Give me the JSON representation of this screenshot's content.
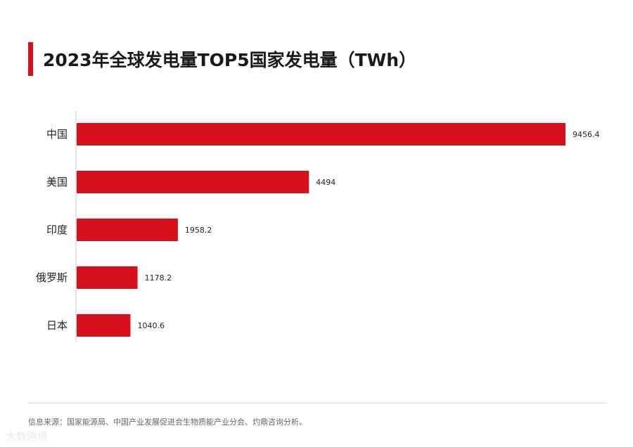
{
  "title": "2023年全球发电量TOP5国家发电量（TWh）",
  "source": "信息来源：国家能源局、中国产业发展促进会生物质能产业分会、灼鼎咨询分析。",
  "watermark": "大数跨境",
  "colors": {
    "bar": "#d7101d",
    "accent": "#d7101d",
    "axis": "#cccccc"
  },
  "chart_data": {
    "type": "bar",
    "orientation": "horizontal",
    "title": "2023年全球发电量TOP5国家发电量（TWh）",
    "categories": [
      "中国",
      "美国",
      "印度",
      "俄罗斯",
      "日本"
    ],
    "values": [
      9456.4,
      4494,
      1958.2,
      1178.2,
      1040.6
    ],
    "value_labels": [
      "9456.4",
      "4494",
      "1958.2",
      "1178.2",
      "1040.6"
    ],
    "xlim": [
      0,
      9456.4
    ],
    "grid": false,
    "legend": "none"
  }
}
